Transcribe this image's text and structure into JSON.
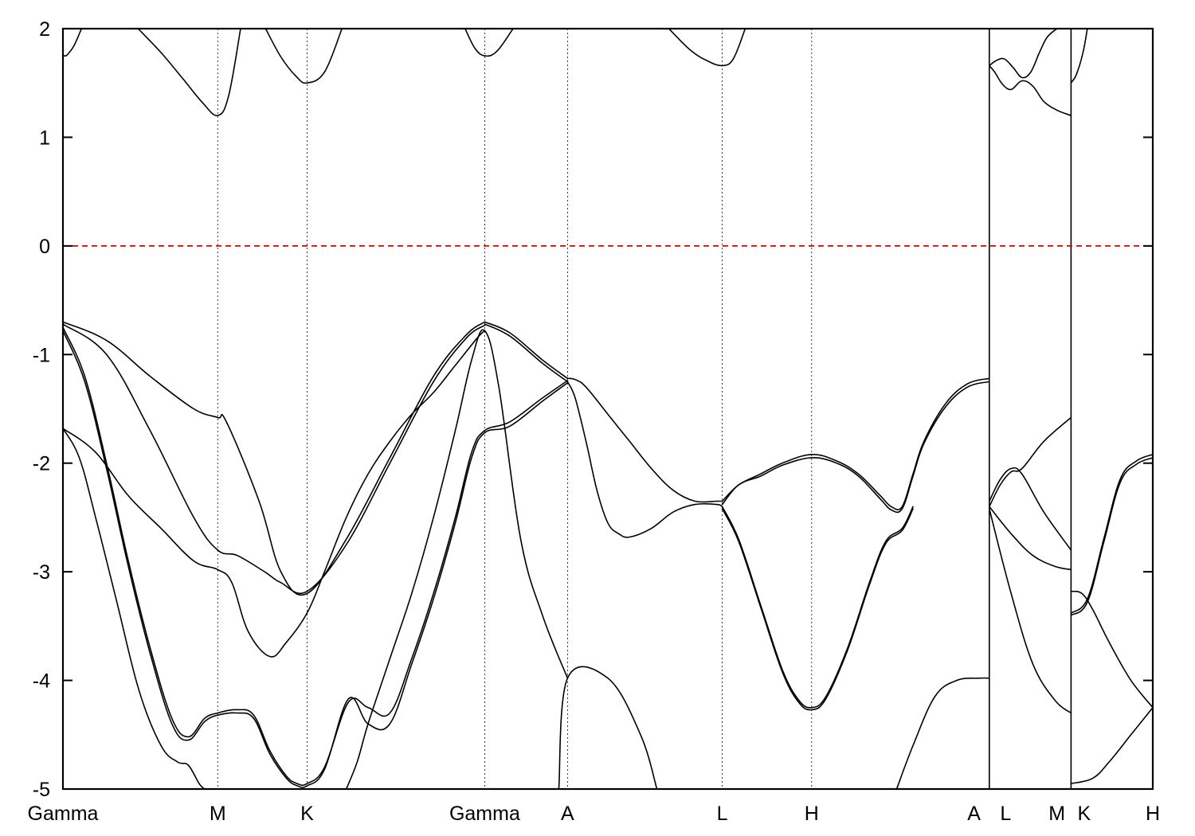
{
  "chart_data": {
    "type": "line",
    "title": "",
    "xlabel": "",
    "ylabel": "",
    "ylim": [
      -5,
      2
    ],
    "yticks": [
      2,
      1,
      0,
      -1,
      -2,
      -3,
      -4,
      -5
    ],
    "ytick_labels": [
      "2",
      "1",
      "0",
      "-1",
      "-2",
      "-3",
      "-4",
      "-5"
    ],
    "xlim": [
      0,
      1
    ],
    "grid": "dashed vertical lines at high-symmetry points",
    "legend": "none",
    "kpoints": [
      {
        "label": "Gamma",
        "x": 0.0
      },
      {
        "label": "M",
        "x": 0.142
      },
      {
        "label": "K",
        "x": 0.224
      },
      {
        "label": "Gamma",
        "x": 0.387
      },
      {
        "label": "A",
        "x": 0.463
      },
      {
        "label": "L",
        "x": 0.605
      },
      {
        "label": "H",
        "x": 0.687
      },
      {
        "label": "A",
        "x": 0.85
      },
      {
        "label": "L",
        "x": 0.85
      },
      {
        "label": "M",
        "x": 0.925
      },
      {
        "label": "K",
        "x": 0.925
      },
      {
        "label": "H",
        "x": 1.0
      }
    ],
    "tick_display": [
      {
        "label": "Gamma",
        "x": 0.0
      },
      {
        "label": "M",
        "x": 0.142
      },
      {
        "label": "K",
        "x": 0.224
      },
      {
        "label": "Gamma",
        "x": 0.387
      },
      {
        "label": "A",
        "x": 0.463
      },
      {
        "label": "L",
        "x": 0.605
      },
      {
        "label": "H",
        "x": 0.687
      },
      {
        "label": "A",
        "x": 0.836
      },
      {
        "label": "L",
        "x": 0.865
      },
      {
        "label": "M",
        "x": 0.912
      },
      {
        "label": "K",
        "x": 0.937
      },
      {
        "label": "H",
        "x": 1.0
      }
    ],
    "fermi_level": {
      "value": 0,
      "color": "#e00000",
      "style": "dashed"
    },
    "band_color": "#000000",
    "series": [
      {
        "x": [
          0.0,
          0.002,
          0.004,
          0.01,
          0.017
        ],
        "values": [
          1.75,
          1.75,
          1.76,
          1.84,
          2.0
        ]
      },
      {
        "x": [
          0.069,
          0.09,
          0.11,
          0.128,
          0.142,
          0.152,
          0.163
        ],
        "values": [
          2.0,
          1.78,
          1.54,
          1.32,
          1.2,
          1.38,
          2.0
        ]
      },
      {
        "x": [
          0.186,
          0.2,
          0.214,
          0.224,
          0.24,
          0.256
        ],
        "values": [
          2.0,
          1.74,
          1.56,
          1.5,
          1.6,
          2.0
        ]
      },
      {
        "x": [
          0.369,
          0.378,
          0.387,
          0.398,
          0.413
        ],
        "values": [
          2.0,
          1.82,
          1.75,
          1.79,
          2.0
        ]
      },
      {
        "x": [
          0.556,
          0.576,
          0.592,
          0.605,
          0.615,
          0.626
        ],
        "values": [
          2.0,
          1.8,
          1.7,
          1.66,
          1.72,
          2.0
        ]
      },
      {
        "x": [
          0.85,
          0.855,
          0.862,
          0.87,
          0.88,
          0.89,
          0.9,
          0.912,
          0.925
        ],
        "values": [
          1.66,
          1.6,
          1.49,
          1.44,
          1.52,
          1.47,
          1.33,
          1.25,
          1.2
        ]
      },
      {
        "x": [
          0.85,
          0.857,
          0.864,
          0.872,
          0.88,
          0.888,
          0.896,
          0.903,
          0.912
        ],
        "values": [
          1.66,
          1.71,
          1.72,
          1.64,
          1.55,
          1.6,
          1.78,
          1.92,
          2.0
        ]
      },
      {
        "x": [
          0.925,
          0.93,
          0.936,
          0.94
        ],
        "values": [
          1.5,
          1.58,
          1.78,
          2.0
        ]
      },
      {
        "x": [
          0.0,
          0.04,
          0.08,
          0.12,
          0.142,
          0.15,
          0.18,
          0.2,
          0.224,
          0.26,
          0.3,
          0.34,
          0.37,
          0.387
        ],
        "values": [
          -0.7,
          -0.87,
          -1.2,
          -1.5,
          -1.58,
          -1.62,
          -2.35,
          -3.0,
          -3.2,
          -2.7,
          -1.95,
          -1.2,
          -0.82,
          -0.7
        ]
      },
      {
        "x": [
          0.0,
          0.04,
          0.08,
          0.12,
          0.142,
          0.16,
          0.185,
          0.2,
          0.224,
          0.26,
          0.3,
          0.34,
          0.37,
          0.387
        ],
        "values": [
          -0.72,
          -1.0,
          -1.7,
          -2.5,
          -2.8,
          -2.85,
          -3.0,
          -3.1,
          -3.18,
          -2.75,
          -2.0,
          -1.25,
          -0.85,
          -0.73
        ]
      },
      {
        "x": [
          0.0,
          0.03,
          0.06,
          0.09,
          0.12,
          0.142,
          0.155,
          0.17,
          0.19,
          0.205,
          0.224,
          0.24,
          0.26,
          0.28,
          0.3,
          0.32,
          0.34,
          0.36,
          0.38,
          0.387
        ],
        "values": [
          -1.68,
          -1.9,
          -2.3,
          -2.6,
          -2.9,
          -2.98,
          -3.1,
          -3.55,
          -3.78,
          -3.65,
          -3.38,
          -3.0,
          -2.5,
          -2.1,
          -1.8,
          -1.55,
          -1.35,
          -1.1,
          -0.85,
          -0.78
        ]
      },
      {
        "x": [
          0.0,
          0.02,
          0.04,
          0.06,
          0.08,
          0.1,
          0.115,
          0.13,
          0.142,
          0.16,
          0.175,
          0.19,
          0.205,
          0.215,
          0.224,
          0.24,
          0.262,
          0.28,
          0.3,
          0.32,
          0.34,
          0.36,
          0.375,
          0.387,
          0.41,
          0.44,
          0.463
        ],
        "values": [
          -0.75,
          -1.2,
          -2.0,
          -2.9,
          -3.7,
          -4.35,
          -4.52,
          -4.35,
          -4.3,
          -4.27,
          -4.32,
          -4.65,
          -4.88,
          -4.95,
          -4.95,
          -4.8,
          -4.2,
          -4.25,
          -4.3,
          -3.8,
          -3.2,
          -2.5,
          -1.9,
          -1.7,
          -1.62,
          -1.4,
          -1.24
        ]
      },
      {
        "x": [
          0.0,
          0.02,
          0.04,
          0.06,
          0.08,
          0.1,
          0.115,
          0.13,
          0.142,
          0.16,
          0.175,
          0.19,
          0.205,
          0.215,
          0.224,
          0.24,
          0.262,
          0.28,
          0.3,
          0.32,
          0.34,
          0.36,
          0.375,
          0.387,
          0.41,
          0.44,
          0.463
        ],
        "values": [
          -0.78,
          -1.25,
          -2.05,
          -2.95,
          -3.75,
          -4.4,
          -4.55,
          -4.38,
          -4.32,
          -4.3,
          -4.35,
          -4.68,
          -4.9,
          -4.97,
          -4.97,
          -4.82,
          -4.17,
          -4.4,
          -4.4,
          -3.85,
          -3.25,
          -2.55,
          -1.95,
          -1.72,
          -1.66,
          -1.43,
          -1.26
        ]
      },
      {
        "x": [
          0.0,
          0.015,
          0.03,
          0.05,
          0.07,
          0.09,
          0.105,
          0.115,
          0.125,
          0.13
        ],
        "values": [
          -1.68,
          -1.95,
          -2.5,
          -3.3,
          -4.1,
          -4.6,
          -4.75,
          -4.78,
          -4.95,
          -5.0
        ]
      },
      {
        "x": [
          0.26,
          0.27,
          0.28,
          0.3,
          0.32,
          0.34,
          0.36,
          0.375,
          0.387,
          0.4,
          0.42,
          0.44,
          0.463
        ],
        "values": [
          -5.0,
          -4.75,
          -4.4,
          -3.8,
          -3.2,
          -2.5,
          -1.7,
          -1.05,
          -0.78,
          -1.3,
          -2.7,
          -3.4,
          -3.98
        ]
      },
      {
        "x": [
          0.387,
          0.41,
          0.44,
          0.463
        ],
        "values": [
          -0.7,
          -0.8,
          -1.05,
          -1.22
        ]
      },
      {
        "x": [
          0.387,
          0.41,
          0.44,
          0.463
        ],
        "values": [
          -0.72,
          -0.83,
          -1.08,
          -1.25
        ]
      },
      {
        "x": [
          0.463,
          0.47,
          0.48,
          0.5,
          0.52,
          0.54,
          0.56,
          0.58,
          0.6,
          0.605
        ],
        "values": [
          -1.22,
          -1.23,
          -1.3,
          -1.55,
          -1.8,
          -2.05,
          -2.25,
          -2.35,
          -2.35,
          -2.35
        ]
      },
      {
        "x": [
          0.463,
          0.47,
          0.48,
          0.49,
          0.5,
          0.51,
          0.52,
          0.54,
          0.56,
          0.58,
          0.6,
          0.605
        ],
        "values": [
          -1.25,
          -1.4,
          -1.8,
          -2.25,
          -2.55,
          -2.65,
          -2.68,
          -2.6,
          -2.45,
          -2.38,
          -2.38,
          -2.4
        ]
      },
      {
        "x": [
          0.455,
          0.463,
          0.5,
          0.53,
          0.545
        ],
        "values": [
          -5.0,
          -3.98,
          -3.98,
          -4.5,
          -5.0
        ]
      },
      {
        "x": [
          0.605,
          0.62,
          0.64,
          0.66,
          0.687,
          0.71,
          0.73,
          0.75,
          0.76,
          0.77,
          0.78,
          0.79,
          0.81,
          0.83,
          0.85
        ],
        "values": [
          -2.35,
          -2.2,
          -2.1,
          -2.0,
          -1.92,
          -1.98,
          -2.1,
          -2.3,
          -2.4,
          -2.4,
          -2.1,
          -1.8,
          -1.45,
          -1.27,
          -1.22
        ]
      },
      {
        "x": [
          0.605,
          0.62,
          0.64,
          0.66,
          0.687,
          0.71,
          0.73,
          0.75,
          0.76,
          0.77,
          0.78,
          0.79,
          0.81,
          0.83,
          0.85
        ],
        "values": [
          -2.38,
          -2.2,
          -2.12,
          -2.02,
          -1.95,
          -2.0,
          -2.12,
          -2.33,
          -2.43,
          -2.42,
          -2.12,
          -1.82,
          -1.48,
          -1.3,
          -1.25
        ]
      },
      {
        "x": [
          0.605,
          0.62,
          0.64,
          0.66,
          0.675,
          0.687,
          0.7,
          0.72,
          0.74,
          0.755,
          0.77,
          0.78
        ],
        "values": [
          -2.4,
          -2.7,
          -3.3,
          -3.9,
          -4.18,
          -4.25,
          -4.15,
          -3.7,
          -3.1,
          -2.72,
          -2.6,
          -2.4
        ]
      },
      {
        "x": [
          0.605,
          0.62,
          0.64,
          0.66,
          0.675,
          0.687,
          0.7,
          0.72,
          0.74,
          0.755,
          0.77,
          0.78
        ],
        "values": [
          -2.42,
          -2.72,
          -3.32,
          -3.92,
          -4.2,
          -4.27,
          -4.17,
          -3.72,
          -3.12,
          -2.74,
          -2.62,
          -2.42
        ]
      },
      {
        "x": [
          0.765,
          0.78,
          0.8,
          0.82,
          0.84,
          0.85
        ],
        "values": [
          -5.0,
          -4.6,
          -4.15,
          -4.0,
          -3.98,
          -3.98
        ]
      },
      {
        "x": [
          0.85,
          0.86,
          0.87,
          0.88,
          0.9,
          0.925
        ],
        "values": [
          -2.4,
          -2.2,
          -2.08,
          -2.05,
          -1.8,
          -1.58
        ]
      },
      {
        "x": [
          0.85,
          0.86,
          0.87,
          0.88,
          0.9,
          0.925
        ],
        "values": [
          -2.35,
          -2.15,
          -2.05,
          -2.1,
          -2.45,
          -2.8
        ]
      },
      {
        "x": [
          0.85,
          0.87,
          0.89,
          0.91,
          0.925
        ],
        "values": [
          -2.4,
          -2.65,
          -2.85,
          -2.95,
          -2.98
        ]
      },
      {
        "x": [
          0.85,
          0.87,
          0.89,
          0.91,
          0.925
        ],
        "values": [
          -2.42,
          -3.2,
          -3.85,
          -4.18,
          -4.3
        ]
      },
      {
        "x": [
          0.925,
          0.94,
          0.955,
          0.97,
          0.985,
          1.0
        ],
        "values": [
          -3.38,
          -3.25,
          -2.7,
          -2.15,
          -1.98,
          -1.92
        ]
      },
      {
        "x": [
          0.925,
          0.94,
          0.955,
          0.97,
          0.985,
          1.0
        ],
        "values": [
          -3.4,
          -3.28,
          -2.73,
          -2.18,
          -2.01,
          -1.95
        ]
      },
      {
        "x": [
          0.925,
          0.935,
          0.945,
          0.96,
          0.98,
          1.0
        ],
        "values": [
          -3.18,
          -3.2,
          -3.35,
          -3.65,
          -4.0,
          -4.25
        ]
      },
      {
        "x": [
          0.925,
          0.945,
          0.96,
          0.98,
          1.0
        ],
        "values": [
          -4.95,
          -4.9,
          -4.75,
          -4.5,
          -4.25
        ]
      }
    ]
  }
}
